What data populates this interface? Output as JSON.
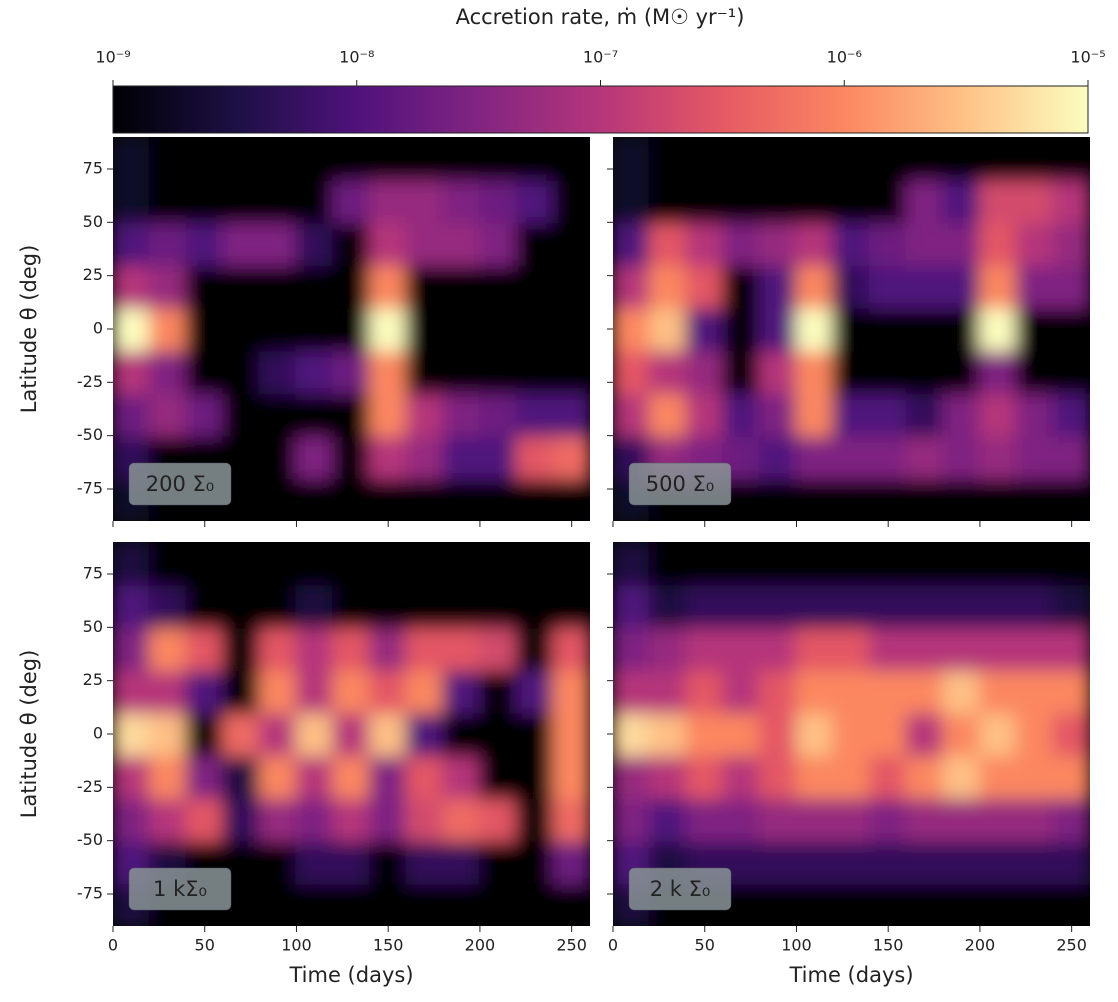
{
  "colorbar": {
    "title": "Accretion rate, ṁ (M☉ yr⁻¹)",
    "log": true,
    "zlim": [
      1e-09,
      1e-05
    ],
    "ticks": [
      {
        "value": 1e-09,
        "label": "10⁻⁹"
      },
      {
        "value": 1e-08,
        "label": "10⁻⁸"
      },
      {
        "value": 1e-07,
        "label": "10⁻⁷"
      },
      {
        "value": 1e-06,
        "label": "10⁻⁶"
      },
      {
        "value": 1e-05,
        "label": "10⁻⁵"
      }
    ],
    "colors": [
      "#000004",
      "#1c1044",
      "#4f127b",
      "#812581",
      "#b5367a",
      "#e55964",
      "#fb8761",
      "#fec287",
      "#fcfdbf"
    ]
  },
  "chart_data": [
    {
      "type": "heatmap",
      "label": "200 Σ₀",
      "ylabel": "Latitude θ (deg)",
      "xbins": [
        0,
        20,
        40,
        60,
        80,
        100,
        120,
        140,
        160,
        180,
        200,
        220,
        240,
        260
      ],
      "ybins": [
        -90,
        -70,
        -50,
        -30,
        -10,
        10,
        30,
        50,
        70,
        90
      ],
      "values": [
        [
          2e-09,
          1e-09,
          1e-09,
          1e-09,
          1e-09,
          1e-09,
          1e-09,
          1e-09,
          1e-09,
          1e-09,
          1e-09,
          1e-09,
          1e-09
        ],
        [
          5e-09,
          1e-09,
          1e-09,
          1e-09,
          1e-09,
          3e-08,
          1e-09,
          1e-07,
          5e-08,
          1e-08,
          1e-08,
          3e-07,
          5e-07
        ],
        [
          2e-08,
          5e-08,
          2e-08,
          1e-09,
          1e-09,
          1e-09,
          1e-09,
          1e-06,
          1e-07,
          3e-08,
          2e-08,
          1e-08,
          1e-08
        ],
        [
          1e-07,
          3e-08,
          1e-09,
          1e-09,
          5e-09,
          1e-08,
          2e-08,
          1e-06,
          1e-09,
          1e-09,
          1e-09,
          1e-09,
          1e-09
        ],
        [
          1e-05,
          1e-06,
          1e-09,
          1e-09,
          1e-09,
          1e-09,
          1e-09,
          1e-05,
          1e-09,
          1e-09,
          1e-09,
          1e-09,
          1e-09
        ],
        [
          1e-07,
          5e-08,
          1e-09,
          1e-09,
          1e-09,
          1e-09,
          1e-09,
          1e-06,
          1e-09,
          1e-09,
          1e-09,
          1e-09,
          1e-09
        ],
        [
          1e-08,
          2e-08,
          1e-08,
          3e-08,
          3e-08,
          5e-09,
          1e-09,
          1e-07,
          5e-08,
          5e-08,
          3e-08,
          1e-09,
          1e-09
        ],
        [
          2e-09,
          1e-09,
          1e-09,
          1e-09,
          1e-09,
          1e-09,
          2e-08,
          5e-08,
          5e-08,
          3e-08,
          2e-08,
          1e-08,
          1e-09
        ],
        [
          2e-09,
          1e-09,
          1e-09,
          1e-09,
          1e-09,
          1e-09,
          1e-09,
          1e-09,
          1e-09,
          1e-09,
          1e-09,
          1e-09,
          1e-09
        ]
      ],
      "xlim": [
        0,
        260
      ],
      "ylim": [
        -90,
        90
      ],
      "xticks": [
        0,
        50,
        100,
        150,
        200,
        250
      ],
      "yticks": [
        -75,
        -50,
        -25,
        0,
        25,
        50,
        75
      ]
    },
    {
      "type": "heatmap",
      "label": "500 Σ₀",
      "xbins": [
        0,
        20,
        40,
        60,
        80,
        100,
        120,
        140,
        160,
        180,
        200,
        220,
        240,
        260
      ],
      "ybins": [
        -90,
        -70,
        -50,
        -30,
        -10,
        10,
        30,
        50,
        70,
        90
      ],
      "values": [
        [
          2e-09,
          1e-09,
          1e-09,
          1e-09,
          1e-09,
          1e-09,
          1e-09,
          1e-09,
          1e-09,
          1e-09,
          1e-09,
          1e-09,
          1e-09
        ],
        [
          5e-09,
          5e-08,
          3e-08,
          2e-08,
          1e-08,
          3e-08,
          3e-08,
          3e-08,
          5e-08,
          3e-08,
          5e-08,
          3e-08,
          3e-08
        ],
        [
          1e-07,
          1e-06,
          1e-07,
          1e-08,
          3e-08,
          1e-06,
          1e-08,
          1e-08,
          5e-09,
          3e-08,
          1e-07,
          3e-08,
          1e-08
        ],
        [
          3e-07,
          1e-07,
          5e-08,
          1e-09,
          1e-07,
          1e-06,
          1e-09,
          1e-09,
          1e-09,
          1e-09,
          3e-08,
          1e-09,
          1e-09
        ],
        [
          1e-06,
          3e-06,
          1e-08,
          1e-09,
          1e-08,
          1e-05,
          1e-09,
          1e-09,
          1e-09,
          1e-09,
          1e-05,
          1e-09,
          1e-09
        ],
        [
          1e-07,
          1e-06,
          3e-07,
          1e-09,
          1e-08,
          1e-06,
          5e-09,
          1e-08,
          1e-08,
          1e-08,
          1e-06,
          3e-08,
          3e-08
        ],
        [
          1e-08,
          3e-07,
          1e-07,
          3e-08,
          5e-08,
          1e-07,
          1e-08,
          2e-08,
          3e-08,
          3e-08,
          3e-07,
          1e-07,
          5e-08
        ],
        [
          2e-09,
          1e-09,
          1e-09,
          1e-09,
          1e-09,
          1e-09,
          1e-09,
          1e-09,
          3e-08,
          1e-08,
          2e-07,
          2e-07,
          1e-07
        ],
        [
          2e-09,
          1e-09,
          1e-09,
          1e-09,
          1e-09,
          1e-09,
          1e-09,
          1e-09,
          1e-09,
          1e-09,
          1e-09,
          1e-09,
          1e-09
        ]
      ],
      "xlim": [
        0,
        260
      ],
      "ylim": [
        -90,
        90
      ],
      "xticks": [
        0,
        50,
        100,
        150,
        200,
        250
      ],
      "yticks": [
        -75,
        -50,
        -25,
        0,
        25,
        50,
        75
      ]
    },
    {
      "type": "heatmap",
      "label": "1 kΣ₀",
      "ylabel": "Latitude θ (deg)",
      "xlabel": "Time (days)",
      "xbins": [
        0,
        20,
        40,
        60,
        80,
        100,
        120,
        140,
        160,
        180,
        200,
        220,
        240,
        260
      ],
      "ybins": [
        -90,
        -70,
        -50,
        -30,
        -10,
        10,
        30,
        50,
        70,
        90
      ],
      "values": [
        [
          3e-09,
          1e-09,
          1e-09,
          1e-09,
          1e-09,
          1e-09,
          1e-09,
          1e-09,
          1e-09,
          1e-09,
          1e-09,
          1e-09,
          1e-09
        ],
        [
          1e-08,
          3e-09,
          1e-09,
          1e-09,
          1e-09,
          5e-09,
          5e-09,
          1e-09,
          5e-09,
          5e-09,
          1e-09,
          1e-09,
          2e-08
        ],
        [
          3e-08,
          1e-07,
          3e-07,
          5e-09,
          5e-08,
          3e-08,
          1e-07,
          3e-08,
          2e-07,
          5e-07,
          3e-07,
          1e-09,
          5e-07
        ],
        [
          1e-07,
          1e-06,
          3e-08,
          3e-09,
          1e-06,
          1e-07,
          1e-06,
          3e-08,
          3e-07,
          1e-07,
          1e-09,
          1e-09,
          1e-06
        ],
        [
          5e-06,
          3e-06,
          1e-09,
          5e-07,
          1e-07,
          3e-06,
          1e-07,
          3e-06,
          1e-08,
          1e-09,
          1e-09,
          1e-09,
          1e-06
        ],
        [
          1e-07,
          1e-07,
          1e-08,
          1e-09,
          1e-06,
          1e-07,
          1e-06,
          3e-07,
          1e-06,
          1e-08,
          1e-09,
          1e-08,
          1e-06
        ],
        [
          3e-08,
          1e-06,
          3e-07,
          1e-09,
          3e-07,
          1e-07,
          3e-07,
          5e-08,
          3e-07,
          3e-07,
          2e-07,
          1e-09,
          3e-07
        ],
        [
          1e-08,
          5e-09,
          1e-09,
          1e-09,
          1e-09,
          3e-09,
          1e-09,
          1e-09,
          1e-09,
          1e-09,
          1e-09,
          1e-09,
          1e-09
        ],
        [
          3e-09,
          1e-09,
          1e-09,
          1e-09,
          1e-09,
          1e-09,
          1e-09,
          1e-09,
          1e-09,
          1e-09,
          1e-09,
          1e-09,
          1e-09
        ]
      ],
      "xlim": [
        0,
        260
      ],
      "ylim": [
        -90,
        90
      ],
      "xticks": [
        0,
        50,
        100,
        150,
        200,
        250
      ],
      "yticks": [
        -75,
        -50,
        -25,
        0,
        25,
        50,
        75
      ]
    },
    {
      "type": "heatmap",
      "label": "2 k Σ₀",
      "xlabel": "Time (days)",
      "xbins": [
        0,
        20,
        40,
        60,
        80,
        100,
        120,
        140,
        160,
        180,
        200,
        220,
        240,
        260
      ],
      "ybins": [
        -90,
        -70,
        -50,
        -30,
        -10,
        10,
        30,
        50,
        70,
        90
      ],
      "values": [
        [
          3e-09,
          1e-09,
          1e-09,
          1e-09,
          1e-09,
          1e-09,
          1e-09,
          1e-09,
          1e-09,
          1e-09,
          1e-09,
          1e-09,
          1e-09
        ],
        [
          1e-08,
          3e-09,
          5e-09,
          5e-09,
          5e-09,
          5e-09,
          5e-09,
          5e-09,
          5e-09,
          5e-09,
          5e-09,
          5e-09,
          5e-09
        ],
        [
          3e-08,
          1e-08,
          3e-08,
          3e-08,
          5e-08,
          5e-08,
          5e-08,
          3e-08,
          5e-08,
          5e-08,
          5e-08,
          5e-08,
          3e-08
        ],
        [
          5e-08,
          1e-07,
          3e-07,
          1e-07,
          3e-07,
          1e-06,
          1e-06,
          3e-07,
          1e-06,
          3e-06,
          1e-06,
          1e-06,
          1e-06
        ],
        [
          5e-06,
          3e-06,
          1e-06,
          1e-06,
          3e-07,
          3e-06,
          1e-06,
          1e-06,
          1e-07,
          1e-06,
          3e-06,
          1e-06,
          3e-07
        ],
        [
          1e-07,
          1e-07,
          3e-07,
          1e-07,
          3e-07,
          1e-06,
          1e-06,
          1e-06,
          1e-06,
          3e-06,
          1e-06,
          1e-06,
          1e-06
        ],
        [
          3e-08,
          5e-08,
          1e-07,
          1e-07,
          1e-07,
          3e-07,
          3e-07,
          1e-07,
          1e-07,
          1e-07,
          1e-07,
          1e-07,
          1e-07
        ],
        [
          1e-08,
          3e-09,
          5e-09,
          5e-09,
          5e-09,
          5e-09,
          5e-09,
          5e-09,
          5e-09,
          5e-09,
          5e-09,
          5e-09,
          3e-09
        ],
        [
          3e-09,
          1e-09,
          1e-09,
          1e-09,
          1e-09,
          1e-09,
          1e-09,
          1e-09,
          1e-09,
          1e-09,
          1e-09,
          1e-09,
          1e-09
        ]
      ],
      "xlim": [
        0,
        260
      ],
      "ylim": [
        -90,
        90
      ],
      "xticks": [
        0,
        50,
        100,
        150,
        200,
        250
      ],
      "yticks": [
        -75,
        -50,
        -25,
        0,
        25,
        50,
        75
      ]
    }
  ]
}
